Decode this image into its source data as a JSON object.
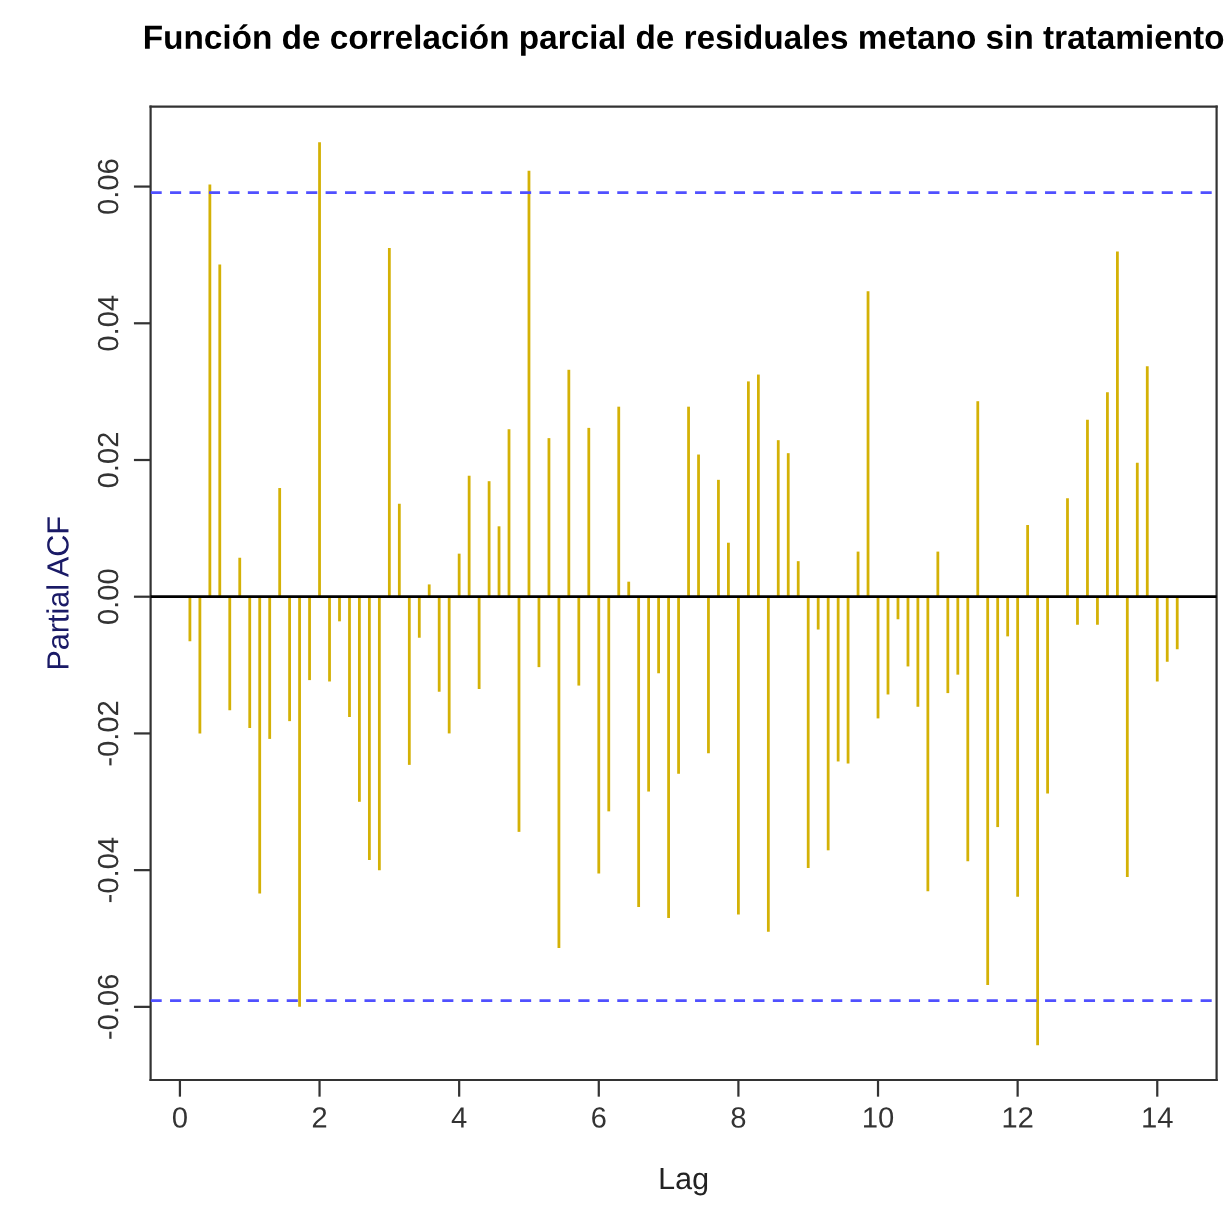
{
  "chart_data": {
    "type": "bar",
    "title": "Función de correlación parcial de residuales metano sin tratamiento",
    "xlabel": "Lag",
    "ylabel": "Partial ACF",
    "x": [
      0.143,
      0.286,
      0.429,
      0.571,
      0.714,
      0.857,
      1,
      1.143,
      1.286,
      1.429,
      1.571,
      1.714,
      1.857,
      2,
      2.143,
      2.286,
      2.429,
      2.571,
      2.714,
      2.857,
      3,
      3.143,
      3.286,
      3.429,
      3.571,
      3.714,
      3.857,
      4,
      4.143,
      4.286,
      4.429,
      4.571,
      4.714,
      4.857,
      5,
      5.143,
      5.286,
      5.429,
      5.571,
      5.714,
      5.857,
      6,
      6.143,
      6.286,
      6.429,
      6.571,
      6.714,
      6.857,
      7,
      7.143,
      7.286,
      7.429,
      7.571,
      7.714,
      7.857,
      8,
      8.143,
      8.286,
      8.429,
      8.571,
      8.714,
      8.857,
      9,
      9.143,
      9.286,
      9.429,
      9.571,
      9.714,
      9.857,
      10,
      10.143,
      10.286,
      10.429,
      10.571,
      10.714,
      10.857,
      11,
      11.143,
      11.286,
      11.429,
      11.571,
      11.714,
      11.857,
      12,
      12.143,
      12.286,
      12.429,
      12.571,
      12.714,
      12.857,
      13,
      13.143,
      13.286,
      13.429,
      13.571,
      13.714,
      13.857,
      14,
      14.143,
      14.286
    ],
    "series": [
      {
        "color": "#d4b106",
        "values": [
          -0.0065,
          -0.02,
          0.0603,
          0.0486,
          -0.0166,
          0.0057,
          -0.0192,
          -0.0434,
          -0.0208,
          0.0159,
          -0.0182,
          -0.06,
          -0.0122,
          0.0665,
          -0.0124,
          -0.0036,
          -0.0176,
          -0.03,
          -0.0385,
          -0.04,
          0.051,
          0.0136,
          -0.0246,
          -0.006,
          0.0018,
          -0.0139,
          -0.02,
          0.0063,
          0.0177,
          -0.0135,
          0.0169,
          0.0103,
          0.0245,
          -0.0344,
          0.0623,
          -0.0103,
          0.0232,
          -0.0514,
          0.0332,
          -0.013,
          0.0247,
          -0.0405,
          -0.0314,
          0.0278,
          0.0022,
          -0.0454,
          -0.0285,
          -0.0112,
          -0.047,
          -0.0259,
          0.0278,
          0.0208,
          -0.0229,
          0.0171,
          0.0079,
          -0.0465,
          0.0315,
          0.0325,
          -0.049,
          0.0229,
          0.021,
          0.0052,
          -0.0397,
          -0.0048,
          -0.0371,
          -0.0241,
          -0.0244,
          0.0066,
          0.0447,
          -0.0178,
          -0.0143,
          -0.0033,
          -0.0102,
          -0.0161,
          -0.0431,
          0.0066,
          -0.0141,
          -0.0114,
          -0.0387,
          0.0286,
          -0.0568,
          -0.0337,
          -0.0058,
          -0.0439,
          0.0105,
          -0.0656,
          -0.0288,
          0.0,
          0.0144,
          -0.0041,
          0.0259,
          -0.0041,
          0.0299,
          0.0505,
          -0.041,
          0.0196,
          0.0337,
          -0.0124,
          -0.0095,
          -0.0077
        ]
      }
    ],
    "xlim": [
      -0.42,
      14.85
    ],
    "xticks": [
      0,
      2,
      4,
      6,
      8,
      10,
      12,
      14
    ],
    "ylim": [
      -0.0707,
      0.0717
    ],
    "yticks": [
      {
        "value": -0.06,
        "label": "-0.06"
      },
      {
        "value": -0.04,
        "label": "-0.04"
      },
      {
        "value": -0.02,
        "label": "-0.02"
      },
      {
        "value": 0,
        "label": "0.00"
      },
      {
        "value": 0.02,
        "label": "0.02"
      },
      {
        "value": 0.04,
        "label": "0.04"
      },
      {
        "value": 0.06,
        "label": "0.06"
      }
    ],
    "ref_lines": [
      {
        "axis": "y",
        "value": 0,
        "color": "#000000",
        "line_style": "solid"
      },
      {
        "axis": "y",
        "value": 0.0591,
        "color": "#5050ff",
        "line_style": "dashed"
      },
      {
        "axis": "y",
        "value": -0.0591,
        "color": "#5050ff",
        "line_style": "dashed"
      }
    ],
    "grid": false,
    "legend": false
  }
}
